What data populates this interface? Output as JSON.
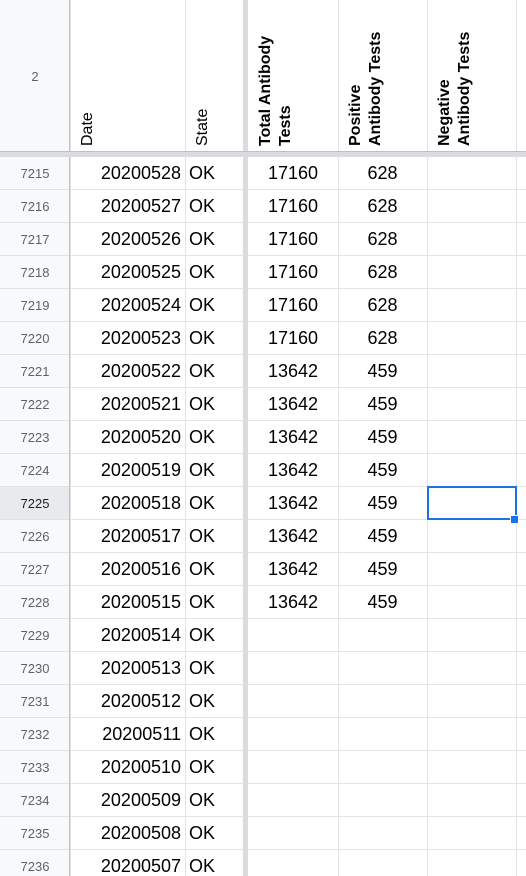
{
  "header": {
    "row_label": "2",
    "columns": [
      [
        "Date"
      ],
      [
        "State"
      ],
      [
        "Total Antibody",
        "Tests"
      ],
      [
        "Positive",
        "Antibody Tests"
      ],
      [
        "Negative",
        "Antibody Tests"
      ]
    ]
  },
  "rows": [
    {
      "num": 7215,
      "date": "20200528",
      "state": "OK",
      "total": 17160,
      "positive": 628
    },
    {
      "num": 7216,
      "date": "20200527",
      "state": "OK",
      "total": 17160,
      "positive": 628
    },
    {
      "num": 7217,
      "date": "20200526",
      "state": "OK",
      "total": 17160,
      "positive": 628
    },
    {
      "num": 7218,
      "date": "20200525",
      "state": "OK",
      "total": 17160,
      "positive": 628
    },
    {
      "num": 7219,
      "date": "20200524",
      "state": "OK",
      "total": 17160,
      "positive": 628
    },
    {
      "num": 7220,
      "date": "20200523",
      "state": "OK",
      "total": 17160,
      "positive": 628
    },
    {
      "num": 7221,
      "date": "20200522",
      "state": "OK",
      "total": 13642,
      "positive": 459
    },
    {
      "num": 7222,
      "date": "20200521",
      "state": "OK",
      "total": 13642,
      "positive": 459
    },
    {
      "num": 7223,
      "date": "20200520",
      "state": "OK",
      "total": 13642,
      "positive": 459
    },
    {
      "num": 7224,
      "date": "20200519",
      "state": "OK",
      "total": 13642,
      "positive": 459
    },
    {
      "num": 7225,
      "date": "20200518",
      "state": "OK",
      "total": 13642,
      "positive": 459
    },
    {
      "num": 7226,
      "date": "20200517",
      "state": "OK",
      "total": 13642,
      "positive": 459
    },
    {
      "num": 7227,
      "date": "20200516",
      "state": "OK",
      "total": 13642,
      "positive": 459
    },
    {
      "num": 7228,
      "date": "20200515",
      "state": "OK",
      "total": 13642,
      "positive": 459
    },
    {
      "num": 7229,
      "date": "20200514",
      "state": "OK"
    },
    {
      "num": 7230,
      "date": "20200513",
      "state": "OK"
    },
    {
      "num": 7231,
      "date": "20200512",
      "state": "OK"
    },
    {
      "num": 7232,
      "date": "20200511",
      "state": "OK"
    },
    {
      "num": 7233,
      "date": "20200510",
      "state": "OK"
    },
    {
      "num": 7234,
      "date": "20200509",
      "state": "OK"
    },
    {
      "num": 7235,
      "date": "20200508",
      "state": "OK"
    },
    {
      "num": 7236,
      "date": "20200507",
      "state": "OK"
    }
  ]
}
